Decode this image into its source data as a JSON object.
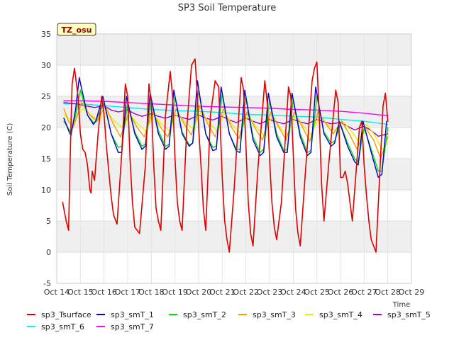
{
  "chart_data": {
    "type": "line",
    "title": "SP3 Soil Temperature",
    "xlabel": "Time",
    "ylabel": "Soil Temperature (C)",
    "badge": "TZ_osu",
    "xlim": [
      14,
      29
    ],
    "ylim": [
      -5,
      35
    ],
    "x_ticks": [
      14,
      15,
      16,
      17,
      18,
      19,
      20,
      21,
      22,
      23,
      24,
      25,
      26,
      27,
      28,
      29
    ],
    "x_tick_labels": [
      "Oct 14",
      "Oct 15",
      "Oct 16",
      "Oct 17",
      "Oct 18",
      "Oct 19",
      "Oct 20",
      "Oct 21",
      "Oct 22",
      "Oct 23",
      "Oct 24",
      "Oct 25",
      "Oct 26",
      "Oct 27",
      "Oct 28",
      "Oct 29"
    ],
    "y_ticks": [
      -5,
      0,
      5,
      10,
      15,
      20,
      25,
      30,
      35
    ],
    "y_tick_labels": [
      "-5",
      "0",
      "5",
      "10",
      "15",
      "20",
      "25",
      "30",
      "35"
    ],
    "legend_position": "bottom",
    "series": [
      {
        "name": "sp3_Tsurface",
        "color": "#dd0000",
        "x": [
          14.25,
          14.4,
          14.5,
          14.55,
          14.6,
          14.65,
          14.75,
          14.9,
          15.0,
          15.1,
          15.2,
          15.3,
          15.4,
          15.45,
          15.5,
          15.6,
          15.75,
          15.9,
          16.0,
          16.1,
          16.2,
          16.3,
          16.4,
          16.55,
          16.75,
          16.9,
          17.0,
          17.1,
          17.2,
          17.3,
          17.5,
          17.75,
          17.9,
          18.0,
          18.1,
          18.2,
          18.3,
          18.4,
          18.6,
          18.8,
          18.9,
          19.0,
          19.1,
          19.2,
          19.3,
          19.5,
          19.7,
          19.85,
          19.95,
          20.0,
          20.1,
          20.2,
          20.3,
          20.5,
          20.7,
          20.85,
          21.0,
          21.1,
          21.2,
          21.3,
          21.5,
          21.8,
          21.9,
          22.0,
          22.1,
          22.2,
          22.3,
          22.5,
          22.8,
          22.9,
          23.0,
          23.1,
          23.2,
          23.3,
          23.5,
          23.8,
          23.9,
          24.0,
          24.1,
          24.2,
          24.3,
          24.5,
          24.8,
          24.9,
          25.0,
          25.1,
          25.2,
          25.3,
          25.5,
          25.8,
          25.9,
          26.0,
          26.1,
          26.2,
          26.3,
          26.5,
          26.8,
          26.9,
          27.0,
          27.1,
          27.2,
          27.3,
          27.5,
          27.8,
          27.9,
          28.0
        ],
        "y": [
          8,
          5,
          3.5,
          12,
          20,
          27,
          29.5,
          25,
          19,
          16.5,
          16,
          14,
          10,
          9.5,
          13,
          11.5,
          19,
          25,
          22,
          17,
          13,
          9,
          6,
          4.5,
          16,
          27,
          25,
          15,
          8,
          4,
          3,
          14,
          27,
          24,
          14,
          7,
          5,
          3.5,
          22,
          29,
          25,
          15,
          8,
          5,
          3.5,
          20,
          30,
          31,
          25,
          20,
          14,
          7,
          3.5,
          22,
          27.5,
          26.5,
          12,
          5,
          2,
          0,
          10,
          28,
          26,
          17,
          8,
          3,
          1,
          13,
          27.5,
          24,
          15,
          8,
          4,
          2,
          8,
          26.5,
          25,
          16,
          7,
          3,
          1,
          12,
          27.5,
          29.5,
          30.5,
          22,
          11,
          5,
          14,
          26,
          24,
          12,
          12,
          13,
          11,
          5,
          20,
          21,
          14,
          9,
          5,
          2,
          0,
          23.5,
          25.5,
          21
        ]
      },
      {
        "name": "sp3_smT_1",
        "color": "#0000cc",
        "x": [
          14.3,
          14.5,
          14.6,
          14.8,
          14.95,
          15.3,
          15.55,
          15.65,
          15.95,
          16.3,
          16.6,
          16.75,
          16.95,
          17.3,
          17.6,
          17.75,
          17.95,
          18.3,
          18.6,
          18.75,
          18.95,
          19.3,
          19.6,
          19.75,
          19.95,
          20.3,
          20.6,
          20.75,
          20.95,
          21.3,
          21.6,
          21.75,
          21.95,
          22.3,
          22.6,
          22.75,
          22.95,
          23.3,
          23.6,
          23.75,
          23.95,
          24.3,
          24.6,
          24.75,
          24.95,
          25.3,
          25.6,
          25.75,
          25.95,
          26.3,
          26.6,
          26.75,
          26.95,
          27.3,
          27.6,
          27.75,
          27.95
        ],
        "y": [
          21.5,
          19.5,
          18.7,
          23,
          28,
          22,
          20.5,
          21,
          25,
          19,
          16,
          16,
          25,
          19,
          16.5,
          17,
          25.5,
          19,
          16.5,
          17,
          26,
          19,
          17,
          17.5,
          27.5,
          19,
          16.3,
          16.5,
          26.5,
          19,
          16.2,
          16,
          26,
          18,
          15.5,
          16,
          25.5,
          18.5,
          16,
          16,
          25.5,
          18.5,
          15.5,
          16,
          26.5,
          19,
          17,
          17.5,
          21,
          17,
          14.5,
          14,
          21,
          16,
          12,
          12.5,
          21
        ]
      },
      {
        "name": "sp3_smT_2",
        "color": "#00dd00",
        "x": [
          14.3,
          14.5,
          14.6,
          14.8,
          15.0,
          15.3,
          15.55,
          15.65,
          16.0,
          16.3,
          16.6,
          16.75,
          17.0,
          17.3,
          17.6,
          17.75,
          18.0,
          18.3,
          18.6,
          18.75,
          19.0,
          19.3,
          19.6,
          19.75,
          20.0,
          20.3,
          20.6,
          20.75,
          21.0,
          21.3,
          21.6,
          21.75,
          22.0,
          22.3,
          22.6,
          22.75,
          23.0,
          23.3,
          23.6,
          23.75,
          24.0,
          24.3,
          24.6,
          24.75,
          25.0,
          25.3,
          25.6,
          25.75,
          26.0,
          26.3,
          26.6,
          26.75,
          27.0,
          27.3,
          27.6,
          27.75,
          28.0
        ],
        "y": [
          21,
          19.8,
          19.2,
          22,
          26,
          22,
          20.8,
          21,
          24,
          19,
          16.8,
          17,
          24,
          19.3,
          17,
          17.3,
          24.5,
          19.5,
          17,
          17.3,
          25,
          19.3,
          17.2,
          17.5,
          26,
          19,
          16.8,
          17,
          25.5,
          19,
          16.5,
          16.5,
          25,
          18.5,
          16,
          16.5,
          24.5,
          19,
          16.3,
          16.5,
          24.5,
          19,
          16,
          16.3,
          25,
          19.3,
          17.5,
          17.8,
          20.5,
          17.5,
          15,
          14.5,
          20,
          16.5,
          13,
          13,
          20
        ]
      },
      {
        "name": "sp3_smT_3",
        "color": "#ff9900",
        "x": [
          14.3,
          14.5,
          14.7,
          15.05,
          15.4,
          15.7,
          16.05,
          16.4,
          16.7,
          17.05,
          17.4,
          17.7,
          18.05,
          18.4,
          18.7,
          19.05,
          19.4,
          19.7,
          20.05,
          20.4,
          20.7,
          21.05,
          21.4,
          21.7,
          22.05,
          22.4,
          22.7,
          23.05,
          23.4,
          23.7,
          24.05,
          24.4,
          24.7,
          25.05,
          25.4,
          25.7,
          26.05,
          26.4,
          26.7,
          27.05,
          27.4,
          27.7,
          28.0
        ],
        "y": [
          23,
          21,
          20,
          24,
          22,
          21,
          23.5,
          20.5,
          18.5,
          22.5,
          20,
          18.5,
          22.5,
          20,
          18.5,
          23,
          20.5,
          18.8,
          23.5,
          20.5,
          18.5,
          23,
          20,
          18.2,
          22.5,
          19.8,
          18,
          22.5,
          20,
          18,
          22.5,
          20,
          17.8,
          22.5,
          20.5,
          19,
          21,
          18.8,
          16.5,
          20,
          18,
          15,
          18.5
        ]
      },
      {
        "name": "sp3_smT_4",
        "color": "#eeee00",
        "x": [
          14.3,
          14.5,
          14.7,
          15.1,
          15.45,
          15.75,
          16.1,
          16.45,
          16.75,
          17.1,
          17.45,
          17.75,
          18.1,
          18.45,
          18.75,
          19.1,
          19.45,
          19.75,
          20.1,
          20.45,
          20.75,
          21.1,
          21.45,
          21.75,
          22.1,
          22.45,
          22.75,
          23.1,
          23.45,
          23.75,
          24.1,
          24.45,
          24.75,
          25.1,
          25.45,
          25.75,
          26.1,
          26.45,
          26.75,
          27.1,
          27.45,
          27.75,
          28.0
        ],
        "y": [
          22,
          21.5,
          21,
          23,
          22,
          21.2,
          22.5,
          21,
          20,
          22,
          20.5,
          19.5,
          22,
          20.5,
          19.5,
          22.3,
          20.8,
          19.8,
          22.5,
          20.8,
          19.5,
          22.3,
          20.3,
          19.2,
          22,
          20,
          18.8,
          21.8,
          20,
          18.8,
          21.8,
          20.2,
          18.8,
          21.8,
          20.5,
          19.5,
          21,
          19.5,
          17.8,
          20.5,
          18.8,
          16.5,
          17.5
        ]
      },
      {
        "name": "sp3_smT_5",
        "color": "#9900cc",
        "x": [
          14.3,
          14.8,
          15.2,
          15.6,
          16.0,
          16.3,
          16.6,
          17.0,
          17.3,
          17.6,
          18.0,
          18.3,
          18.6,
          19.0,
          19.3,
          19.6,
          20.0,
          20.3,
          20.6,
          21.0,
          21.3,
          21.6,
          22.0,
          22.3,
          22.6,
          23.0,
          23.3,
          23.6,
          24.0,
          24.3,
          24.6,
          25.0,
          25.3,
          25.6,
          26.0,
          26.3,
          26.6,
          27.0,
          27.3,
          27.6,
          28.0
        ],
        "y": [
          24,
          23.8,
          23.5,
          23.2,
          23.5,
          22.8,
          22.5,
          22.8,
          22.2,
          21.8,
          22.2,
          21.8,
          21.5,
          22,
          21.6,
          21.3,
          22,
          21.5,
          21.2,
          21.8,
          21.2,
          20.8,
          21.5,
          21,
          20.6,
          21.3,
          20.9,
          20.6,
          21.3,
          20.9,
          20.6,
          21.3,
          20.9,
          20.6,
          20.8,
          20.2,
          19.6,
          20.2,
          19.5,
          18.6,
          19
        ]
      },
      {
        "name": "sp3_smT_6",
        "color": "#00eeee",
        "x": [
          14.3,
          15.0,
          16.0,
          17.0,
          18.0,
          19.0,
          20.0,
          21.0,
          22.0,
          23.0,
          24.0,
          25.0,
          26.0,
          27.0,
          28.0
        ],
        "y": [
          23.8,
          23.8,
          23.5,
          23.2,
          22.9,
          22.7,
          22.6,
          22.4,
          22.1,
          22.0,
          21.8,
          21.7,
          21.3,
          21.0,
          20.5
        ]
      },
      {
        "name": "sp3_smT_7",
        "color": "#ff00ff",
        "x": [
          14.3,
          15.0,
          16.0,
          17.0,
          18.0,
          19.0,
          20.0,
          21.0,
          22.0,
          23.0,
          24.0,
          25.0,
          26.0,
          27.0,
          28.0
        ],
        "y": [
          24.3,
          24.3,
          24.2,
          24.0,
          23.8,
          23.6,
          23.4,
          23.3,
          23.2,
          23.1,
          22.9,
          22.8,
          22.6,
          22.3,
          21.9
        ]
      }
    ]
  }
}
